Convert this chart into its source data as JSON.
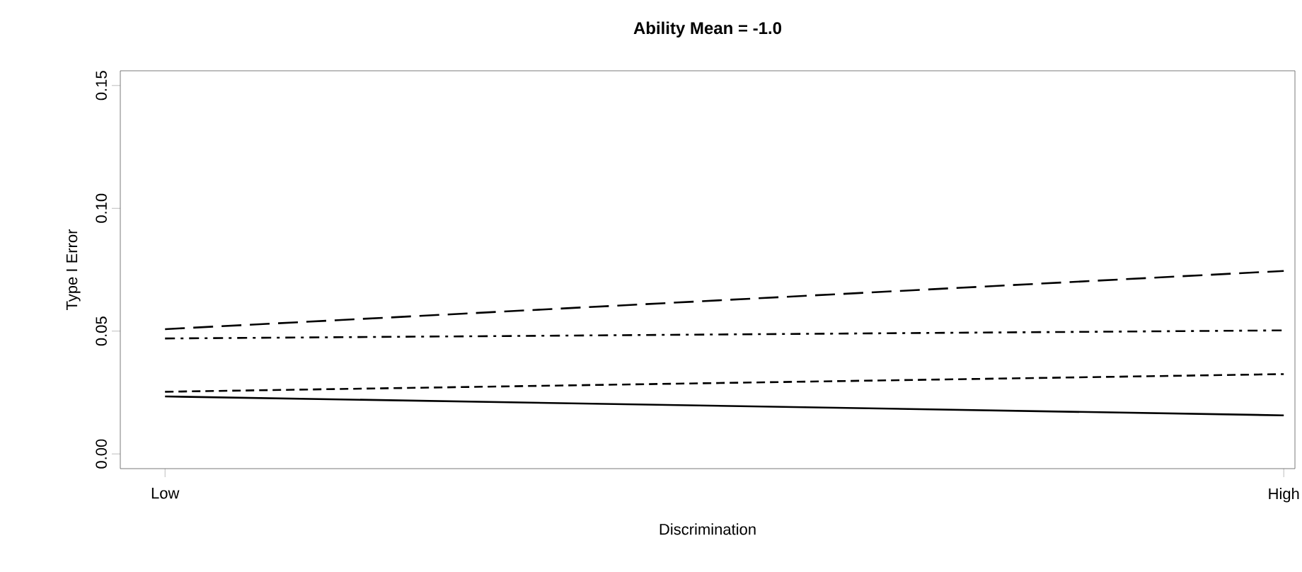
{
  "chart_data": {
    "type": "line",
    "title": "Ability Mean = -1.0",
    "xlabel": "Discrimination",
    "ylabel": "Type I Error",
    "categories": [
      "Low",
      "High"
    ],
    "series": [
      {
        "color": "#000000",
        "line_style": "solid",
        "values": [
          0.0234,
          0.0157
        ]
      },
      {
        "color": "#000000",
        "line_style": "dashed",
        "values": [
          0.0253,
          0.0325
        ]
      },
      {
        "color": "#000000",
        "line_style": "dashdot",
        "values": [
          0.047,
          0.0503
        ]
      },
      {
        "color": "#000000",
        "line_style": "longdash",
        "values": [
          0.0508,
          0.0745
        ]
      }
    ],
    "ylim": [
      -0.006,
      0.156
    ],
    "yticks": [
      {
        "value": 0,
        "label": "0.00"
      },
      {
        "value": 0.05,
        "label": "0.05"
      },
      {
        "value": 0.1,
        "label": "0.10"
      },
      {
        "value": 0.15,
        "label": "0.15"
      }
    ],
    "grid": false,
    "marker": "none"
  }
}
